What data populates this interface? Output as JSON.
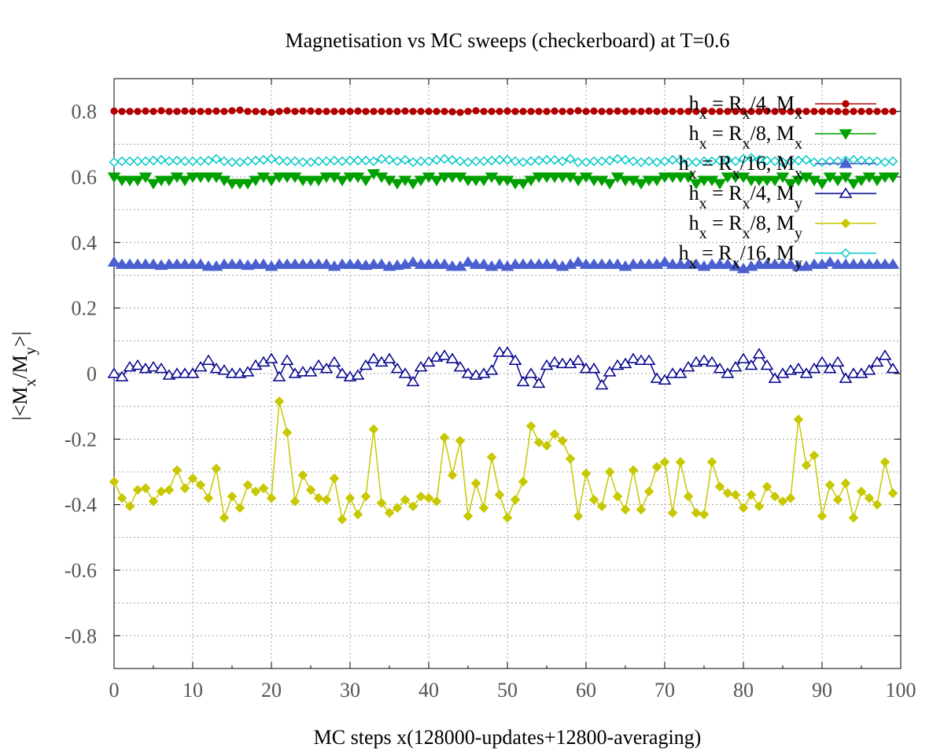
{
  "chart_data": {
    "type": "line",
    "title": "Magnetisation vs MC sweeps (checkerboard) at T=0.6",
    "xlabel": "MC steps x(128000-updates+12800-averaging)",
    "ylabel": {
      "prefix": "|<M",
      "sub1": "x",
      "mid": "/M",
      "sub2": "y",
      "suffix": ">|"
    },
    "xlim": [
      0,
      100
    ],
    "ylim": [
      -0.9,
      0.9
    ],
    "x_ticks": [
      0,
      10,
      20,
      30,
      40,
      50,
      60,
      70,
      80,
      90,
      100
    ],
    "y_ticks": [
      -0.8,
      -0.6,
      -0.4,
      -0.2,
      0,
      0.2,
      0.4,
      0.6,
      0.8
    ],
    "grid": true,
    "legend_position": "top-right",
    "x": [
      0,
      1,
      2,
      3,
      4,
      5,
      6,
      7,
      8,
      9,
      10,
      11,
      12,
      13,
      14,
      15,
      16,
      17,
      18,
      19,
      20,
      21,
      22,
      23,
      24,
      25,
      26,
      27,
      28,
      29,
      30,
      31,
      32,
      33,
      34,
      35,
      36,
      37,
      38,
      39,
      40,
      41,
      42,
      43,
      44,
      45,
      46,
      47,
      48,
      49,
      50,
      51,
      52,
      53,
      54,
      55,
      56,
      57,
      58,
      59,
      60,
      61,
      62,
      63,
      64,
      65,
      66,
      67,
      68,
      69,
      70,
      71,
      72,
      73,
      74,
      75,
      76,
      77,
      78,
      79,
      80,
      81,
      82,
      83,
      84,
      85,
      86,
      87,
      88,
      89,
      90,
      91,
      92,
      93,
      94,
      95,
      96,
      97,
      98,
      99
    ],
    "series": [
      {
        "legend_parts": {
          "pre": "h",
          "sub1": "x",
          "mid1": " = R",
          "sub2": "x",
          "mid2": "/4, M",
          "sub3": "x"
        },
        "color": "#b00000",
        "marker": "circle",
        "filled": true,
        "values": [
          0.801,
          0.8,
          0.8,
          0.8,
          0.801,
          0.8,
          0.802,
          0.8,
          0.8,
          0.801,
          0.8,
          0.8,
          0.8,
          0.801,
          0.8,
          0.802,
          0.804,
          0.8,
          0.8,
          0.799,
          0.797,
          0.8,
          0.802,
          0.8,
          0.801,
          0.801,
          0.8,
          0.8,
          0.8,
          0.8,
          0.8,
          0.801,
          0.8,
          0.8,
          0.8,
          0.8,
          0.8,
          0.801,
          0.8,
          0.8,
          0.8,
          0.8,
          0.8,
          0.799,
          0.797,
          0.8,
          0.802,
          0.8,
          0.8,
          0.8,
          0.801,
          0.8,
          0.8,
          0.8,
          0.8,
          0.8,
          0.801,
          0.8,
          0.8,
          0.802,
          0.8,
          0.801,
          0.8,
          0.8,
          0.801,
          0.8,
          0.8,
          0.8,
          0.801,
          0.8,
          0.8,
          0.8,
          0.8,
          0.8,
          0.8,
          0.802,
          0.8,
          0.8,
          0.8,
          0.8,
          0.8,
          0.8,
          0.8,
          0.801,
          0.8,
          0.8,
          0.8,
          0.8,
          0.8,
          0.8,
          0.8,
          0.8,
          0.8,
          0.799,
          0.8,
          0.8,
          0.8,
          0.8,
          0.8,
          0.8
        ]
      },
      {
        "legend_parts": {
          "pre": "h",
          "sub1": "x",
          "mid1": " = R",
          "sub2": "x",
          "mid2": "/8, M",
          "sub3": "x"
        },
        "color": "#00a000",
        "marker": "triangle-down",
        "filled": true,
        "values": [
          0.6,
          0.59,
          0.59,
          0.59,
          0.6,
          0.58,
          0.59,
          0.59,
          0.6,
          0.59,
          0.6,
          0.6,
          0.6,
          0.6,
          0.59,
          0.58,
          0.58,
          0.58,
          0.59,
          0.6,
          0.59,
          0.6,
          0.6,
          0.6,
          0.59,
          0.59,
          0.59,
          0.6,
          0.6,
          0.59,
          0.6,
          0.6,
          0.59,
          0.61,
          0.6,
          0.59,
          0.58,
          0.59,
          0.58,
          0.59,
          0.6,
          0.59,
          0.6,
          0.6,
          0.6,
          0.59,
          0.59,
          0.59,
          0.6,
          0.59,
          0.59,
          0.58,
          0.58,
          0.59,
          0.6,
          0.6,
          0.6,
          0.6,
          0.6,
          0.59,
          0.6,
          0.59,
          0.59,
          0.58,
          0.6,
          0.59,
          0.59,
          0.58,
          0.59,
          0.59,
          0.6,
          0.6,
          0.6,
          0.6,
          0.58,
          0.59,
          0.59,
          0.58,
          0.6,
          0.6,
          0.6,
          0.59,
          0.59,
          0.59,
          0.59,
          0.6,
          0.58,
          0.59,
          0.6,
          0.59,
          0.58,
          0.6,
          0.59,
          0.6,
          0.58,
          0.59,
          0.6,
          0.59,
          0.6,
          0.6
        ]
      },
      {
        "legend_parts": {
          "pre": "h",
          "sub1": "x",
          "mid1": " = R",
          "sub2": "x",
          "mid2": "/16, M",
          "sub3": "x"
        },
        "color": "#4a5fd0",
        "marker": "triangle-up",
        "filled": true,
        "values": [
          0.34,
          0.333,
          0.333,
          0.333,
          0.333,
          0.333,
          0.33,
          0.333,
          0.333,
          0.333,
          0.333,
          0.333,
          0.327,
          0.327,
          0.333,
          0.333,
          0.333,
          0.33,
          0.333,
          0.333,
          0.327,
          0.333,
          0.333,
          0.333,
          0.333,
          0.333,
          0.333,
          0.333,
          0.327,
          0.333,
          0.333,
          0.333,
          0.33,
          0.333,
          0.333,
          0.327,
          0.33,
          0.333,
          0.34,
          0.333,
          0.333,
          0.333,
          0.333,
          0.327,
          0.327,
          0.34,
          0.333,
          0.333,
          0.327,
          0.333,
          0.327,
          0.333,
          0.333,
          0.333,
          0.333,
          0.333,
          0.333,
          0.327,
          0.333,
          0.34,
          0.333,
          0.333,
          0.333,
          0.333,
          0.333,
          0.327,
          0.333,
          0.333,
          0.333,
          0.333,
          0.34,
          0.333,
          0.333,
          0.333,
          0.333,
          0.327,
          0.333,
          0.333,
          0.333,
          0.327,
          0.32,
          0.327,
          0.333,
          0.333,
          0.333,
          0.333,
          0.333,
          0.327,
          0.327,
          0.333,
          0.333,
          0.34,
          0.333,
          0.333,
          0.333,
          0.333,
          0.333,
          0.333,
          0.333,
          0.333
        ]
      },
      {
        "legend_parts": {
          "pre": "h",
          "sub1": "x",
          "mid1": " = R",
          "sub2": "x",
          "mid2": "/4, M",
          "sub3": "y"
        },
        "color": "#00008b",
        "marker": "triangle-up",
        "filled": false,
        "values": [
          0.0,
          -0.01,
          0.02,
          0.025,
          0.015,
          0.02,
          0.015,
          -0.005,
          0.0,
          0.0,
          0.0,
          0.02,
          0.04,
          0.015,
          0.01,
          0.0,
          0.0,
          0.005,
          0.025,
          0.035,
          0.045,
          -0.01,
          0.04,
          0.0,
          0.005,
          0.005,
          0.025,
          0.015,
          0.035,
          0.0,
          -0.01,
          -0.005,
          0.025,
          0.045,
          0.035,
          0.045,
          0.015,
          0.0,
          -0.025,
          0.02,
          0.035,
          0.05,
          0.055,
          0.045,
          0.02,
          0.0,
          -0.005,
          0.0,
          0.01,
          0.065,
          0.065,
          0.04,
          -0.025,
          0.0,
          -0.03,
          0.025,
          0.035,
          0.03,
          0.03,
          0.04,
          0.015,
          0.015,
          -0.035,
          0.005,
          0.025,
          0.03,
          0.045,
          0.04,
          0.04,
          -0.015,
          -0.02,
          0.0,
          0.0,
          0.02,
          0.035,
          0.04,
          0.035,
          0.015,
          0.0,
          0.02,
          0.045,
          0.025,
          0.06,
          0.025,
          -0.015,
          0.0,
          0.01,
          0.015,
          0.0,
          0.015,
          0.035,
          0.015,
          0.035,
          -0.015,
          0.0,
          0.0,
          0.01,
          0.035,
          0.055,
          0.015
        ]
      },
      {
        "legend_parts": {
          "pre": "h",
          "sub1": "x",
          "mid1": " = R",
          "sub2": "x",
          "mid2": "/8, M",
          "sub3": "y"
        },
        "color": "#c8c800",
        "marker": "diamond",
        "filled": true,
        "values": [
          -0.33,
          -0.38,
          -0.405,
          -0.355,
          -0.35,
          -0.39,
          -0.36,
          -0.355,
          -0.295,
          -0.35,
          -0.32,
          -0.34,
          -0.38,
          -0.29,
          -0.44,
          -0.375,
          -0.41,
          -0.34,
          -0.36,
          -0.35,
          -0.38,
          -0.085,
          -0.18,
          -0.39,
          -0.31,
          -0.355,
          -0.38,
          -0.385,
          -0.32,
          -0.445,
          -0.38,
          -0.43,
          -0.375,
          -0.17,
          -0.395,
          -0.425,
          -0.41,
          -0.385,
          -0.405,
          -0.375,
          -0.38,
          -0.39,
          -0.195,
          -0.31,
          -0.205,
          -0.435,
          -0.335,
          -0.41,
          -0.255,
          -0.37,
          -0.44,
          -0.385,
          -0.33,
          -0.16,
          -0.21,
          -0.22,
          -0.185,
          -0.205,
          -0.26,
          -0.435,
          -0.305,
          -0.385,
          -0.405,
          -0.3,
          -0.375,
          -0.415,
          -0.295,
          -0.415,
          -0.36,
          -0.285,
          -0.27,
          -0.425,
          -0.27,
          -0.375,
          -0.425,
          -0.43,
          -0.27,
          -0.345,
          -0.365,
          -0.37,
          -0.41,
          -0.37,
          -0.405,
          -0.345,
          -0.375,
          -0.39,
          -0.38,
          -0.14,
          -0.28,
          -0.25,
          -0.435,
          -0.34,
          -0.385,
          -0.335,
          -0.44,
          -0.36,
          -0.38,
          -0.4,
          -0.27,
          -0.365
        ]
      },
      {
        "legend_parts": {
          "pre": "h",
          "sub1": "x",
          "mid1": " = R",
          "sub2": "x",
          "mid2": "/16, M",
          "sub3": "y"
        },
        "color": "#00c8c8",
        "marker": "diamond",
        "filled": false,
        "values": [
          0.645,
          0.648,
          0.648,
          0.648,
          0.648,
          0.65,
          0.652,
          0.648,
          0.65,
          0.648,
          0.648,
          0.648,
          0.65,
          0.655,
          0.648,
          0.645,
          0.645,
          0.648,
          0.65,
          0.652,
          0.655,
          0.65,
          0.648,
          0.648,
          0.645,
          0.645,
          0.648,
          0.648,
          0.65,
          0.648,
          0.65,
          0.65,
          0.65,
          0.648,
          0.655,
          0.652,
          0.648,
          0.652,
          0.645,
          0.648,
          0.648,
          0.652,
          0.655,
          0.652,
          0.648,
          0.645,
          0.648,
          0.648,
          0.65,
          0.652,
          0.652,
          0.648,
          0.645,
          0.648,
          0.65,
          0.652,
          0.652,
          0.648,
          0.655,
          0.645,
          0.645,
          0.648,
          0.648,
          0.65,
          0.655,
          0.652,
          0.648,
          0.645,
          0.648,
          0.645,
          0.648,
          0.652,
          0.65,
          0.645,
          0.645,
          0.648,
          0.648,
          0.65,
          0.652,
          0.648,
          0.655,
          0.658,
          0.652,
          0.65,
          0.648,
          0.645,
          0.648,
          0.65,
          0.652,
          0.645,
          0.645,
          0.648,
          0.648,
          0.65,
          0.652,
          0.65,
          0.648,
          0.648,
          0.645,
          0.648
        ]
      }
    ]
  }
}
